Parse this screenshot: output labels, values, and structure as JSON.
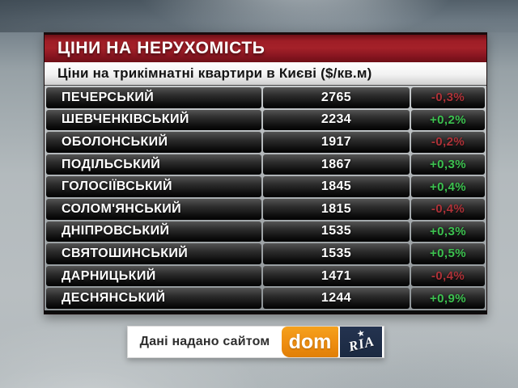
{
  "header": {
    "title": "ЦІНИ НА НЕРУХОМІСТЬ",
    "subtitle": "Ціни на трикімнатні квартири в Києві ($/кв.м)"
  },
  "chart_data": {
    "type": "table",
    "title": "ЦІНИ НА НЕРУХОМІСТЬ",
    "subtitle": "Ціни на трикімнатні квартири в Києві ($/кв.м)",
    "rows": [
      {
        "district": "ПЕЧЕРСЬКИЙ",
        "price": "2765",
        "change": "-0,3%"
      },
      {
        "district": "ШЕВЧЕНКІВСЬКИЙ",
        "price": "2234",
        "change": "+0,2%"
      },
      {
        "district": "ОБОЛОНСЬКИЙ",
        "price": "1917",
        "change": "-0,2%"
      },
      {
        "district": "ПОДІЛЬСЬКИЙ",
        "price": "1867",
        "change": "+0,3%"
      },
      {
        "district": "ГОЛОСІЇВСЬКИЙ",
        "price": "1845",
        "change": "+0,4%"
      },
      {
        "district": "СОЛОМ'ЯНСЬКИЙ",
        "price": "1815",
        "change": "-0,4%"
      },
      {
        "district": "ДНІПРОВСЬКИЙ",
        "price": "1535",
        "change": "+0,3%"
      },
      {
        "district": "СВЯТОШИНСЬКИЙ",
        "price": "1535",
        "change": "+0,5%"
      },
      {
        "district": "ДАРНИЦЬКИЙ",
        "price": "1471",
        "change": "-0,4%"
      },
      {
        "district": "ДЕСНЯНСЬКИЙ",
        "price": "1244",
        "change": "+0,9%"
      }
    ]
  },
  "footer": {
    "credit": "Дані надано сайтом",
    "dom_logo": "dom",
    "ria_logo": "RIA"
  },
  "icons": {
    "ria_star": "★"
  },
  "colors": {
    "positive_change": "#3cc14f",
    "negative_change": "#ae3238",
    "header_red": "#9e1d26",
    "dom_orange": "#ee8d10",
    "ria_navy": "#1b2941"
  }
}
